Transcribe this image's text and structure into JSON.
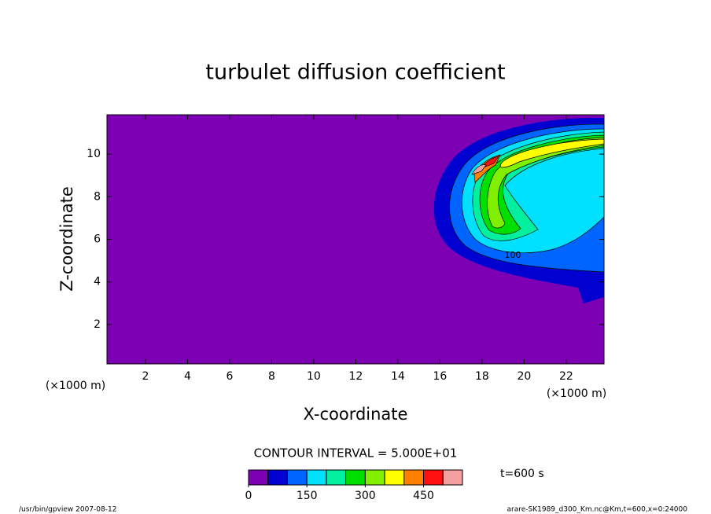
{
  "chart_data": {
    "type": "contour",
    "title": "turbulet diffusion coefficient",
    "xlabel": "X-coordinate",
    "ylabel": "Z-coordinate",
    "x_unit": "(×1000 m)",
    "y_unit": "(×1000 m)",
    "xlim": [
      0.17,
      23.8
    ],
    "ylim": [
      0.15,
      11.85
    ],
    "xticks": [
      2,
      4,
      6,
      8,
      10,
      12,
      14,
      16,
      18,
      20,
      22
    ],
    "yticks": [
      2,
      4,
      6,
      8,
      10
    ],
    "contour_interval_label": "CONTOUR INTERVAL = 5.000E+01",
    "levels": [
      0,
      50,
      100,
      150,
      200,
      250,
      300,
      350,
      400,
      450,
      500,
      550
    ],
    "colors": [
      "#7e00b4",
      "#0000d0",
      "#0064ff",
      "#00e0ff",
      "#00f0a0",
      "#00e000",
      "#80f000",
      "#ffff00",
      "#ff8000",
      "#ff1010",
      "#f4a0a0"
    ],
    "colorbar_ticks": [
      0,
      150,
      300,
      450
    ],
    "contour_labels": [
      "100"
    ],
    "time_label": "t=600 s",
    "footer_left": "/usr/bin/gpview   2007-08-12",
    "footer_right": "arare-SK1989_d300_Km.nc@Km,t=600,x=0:24000"
  }
}
